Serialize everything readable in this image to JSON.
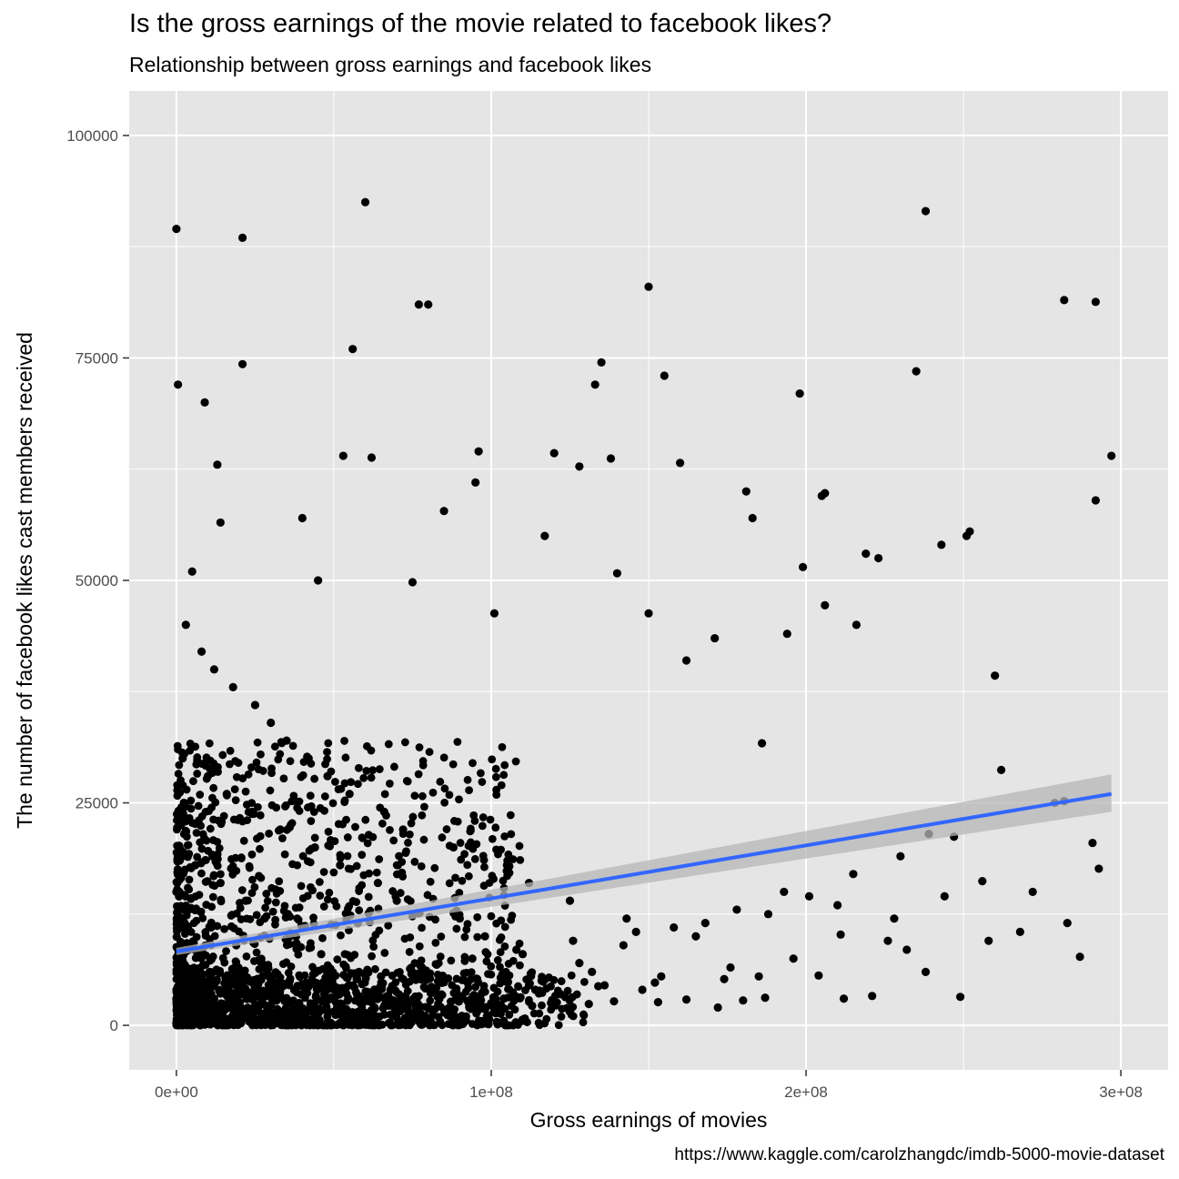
{
  "chart_data": {
    "type": "scatter",
    "title": "Is the gross earnings of the movie related to facebook likes?",
    "subtitle": "Relationship between gross earnings and facebook likes",
    "caption": "https://www.kaggle.com/carolzhangdc/imdb-5000-movie-dataset",
    "xlabel": "Gross earnings of movies",
    "ylabel": "The number of facebook likes cast members received",
    "xlim": [
      -15000000,
      315000000
    ],
    "ylim": [
      -5000,
      105000
    ],
    "x_ticks": [
      0,
      100000000,
      200000000,
      300000000
    ],
    "x_tick_labels": [
      "0e+00",
      "1e+08",
      "2e+08",
      "3e+08"
    ],
    "y_ticks": [
      0,
      25000,
      50000,
      75000,
      100000
    ],
    "y_tick_labels": [
      "0",
      "25000",
      "50000",
      "75000",
      "100000"
    ],
    "grid": true,
    "background": "#e5e5e5",
    "point_color": "#000000",
    "trend_color": "#3366ff",
    "band_color": "#b5b5b5",
    "trend": {
      "method": "linear",
      "x": [
        0,
        297000000
      ],
      "y": [
        8300,
        26000
      ],
      "band_lower": [
        7900,
        24000
      ],
      "band_upper": [
        8700,
        28200
      ]
    },
    "points": {
      "x": [
        0,
        500000,
        21000000,
        60000000,
        238000000,
        150000000,
        80000000,
        77000000,
        282000000,
        292000000,
        56000000,
        135000000,
        21000000,
        133000000,
        235000000,
        155000000,
        198000000,
        9000000,
        297000000,
        13000000,
        96000000,
        53000000,
        62000000,
        120000000,
        138000000,
        128000000,
        160000000,
        95000000,
        292000000,
        181000000,
        205000000,
        206000000,
        14000000,
        183000000,
        223000000,
        252000000,
        85000000,
        40000000,
        117000000,
        251000000,
        199000000,
        206000000,
        219000000,
        216000000,
        140000000,
        5000000,
        45000000,
        75000000,
        101000000,
        150000000,
        171000000,
        260000000,
        262000000,
        186000000,
        162000000,
        194000000,
        243000000,
        279000000,
        282000000,
        287000000,
        291000000,
        293000000,
        272000000,
        256000000,
        228000000,
        239000000,
        185000000,
        201000000,
        211000000,
        226000000,
        247000000,
        3000000,
        8000000,
        12000000,
        18000000,
        25000000,
        30000000,
        35000000,
        42000000,
        48000000,
        55000000,
        66000000,
        72000000,
        88000000,
        105000000,
        112000000,
        125000000,
        143000000,
        165000000,
        2000000,
        10000000,
        16000000,
        24000000,
        33000000,
        44000000,
        52000000,
        64000000,
        70000000,
        90000000,
        98000000,
        110000000,
        132000000,
        148000000,
        172000000,
        1000000,
        6000000,
        14000000,
        22000000,
        28000000,
        38000000,
        46000000,
        58000000,
        68000000,
        80000000,
        92000000,
        104000000,
        116000000,
        128000000,
        142000000,
        158000000,
        178000000,
        193000000,
        215000000,
        230000000,
        0,
        4000000,
        11000000,
        19000000,
        27000000,
        36000000,
        49000000,
        61000000,
        74000000,
        86000000,
        100000000,
        122000000,
        136000000,
        154000000,
        176000000,
        196000000,
        232000000,
        258000000,
        268000000,
        283000000,
        2000000,
        5000000,
        9000000,
        15000000,
        20000000,
        26000000,
        32000000,
        39000000,
        47000000,
        56000000,
        65000000,
        78000000,
        94000000,
        108000000,
        126000000,
        146000000,
        168000000,
        188000000,
        210000000,
        244000000,
        1000000,
        3000000,
        7000000,
        12000000,
        17000000,
        23000000,
        29000000,
        37000000,
        43000000,
        51000000,
        59000000,
        69000000,
        83000000,
        97000000,
        114000000,
        134000000,
        152000000,
        174000000,
        204000000,
        238000000,
        0,
        2000000,
        6000000,
        10000000,
        14000000,
        19000000,
        25000000,
        31000000,
        38000000,
        45000000,
        53000000,
        62000000,
        73000000,
        87000000,
        103000000,
        119000000,
        139000000,
        162000000,
        187000000,
        221000000,
        1000000,
        4000000,
        8000000,
        13000000,
        18000000,
        24000000,
        30000000,
        36000000,
        44000000,
        52000000,
        60000000,
        71000000,
        82000000,
        96000000,
        113000000,
        131000000,
        153000000,
        180000000,
        212000000,
        249000000,
        0,
        1000000,
        3000000,
        5000000,
        7000000,
        9000000,
        12000000,
        15000000,
        18000000,
        21000000,
        24000000,
        27000000,
        31000000,
        35000000,
        40000000,
        46000000,
        54000000,
        63000000,
        76000000,
        93000000
      ],
      "y": [
        89500,
        72000,
        88500,
        92500,
        91500,
        83000,
        81000,
        81000,
        81500,
        81300,
        76000,
        74500,
        74300,
        72000,
        73500,
        73000,
        71000,
        70000,
        64000,
        63000,
        64500,
        64000,
        63800,
        64300,
        63700,
        62800,
        63200,
        61000,
        59000,
        60000,
        59500,
        59800,
        56500,
        57000,
        52500,
        55500,
        57800,
        57000,
        55000,
        55000,
        51500,
        47200,
        53000,
        45000,
        50800,
        51000,
        50000,
        49800,
        46300,
        46300,
        43500,
        39300,
        28700,
        31700,
        41000,
        44000,
        54000,
        25000,
        25200,
        7700,
        20500,
        17600,
        15000,
        16200,
        12000,
        21500,
        5500,
        14500,
        10200,
        9500,
        21200,
        45000,
        42000,
        40000,
        38000,
        36000,
        34000,
        32000,
        30000,
        28000,
        26000,
        24000,
        22000,
        20000,
        18000,
        16000,
        14000,
        12000,
        10000,
        30000,
        28000,
        26000,
        24000,
        22000,
        20000,
        18000,
        16000,
        14000,
        12000,
        10000,
        8000,
        6000,
        4000,
        2000,
        20000,
        18000,
        16000,
        14000,
        12000,
        10000,
        8000,
        6000,
        4000,
        2000,
        1000,
        3000,
        5000,
        7000,
        9000,
        11000,
        13000,
        15000,
        17000,
        19000,
        15000,
        13000,
        11000,
        9000,
        7000,
        5000,
        3000,
        1000,
        500,
        1500,
        2500,
        3500,
        4500,
        5500,
        6500,
        7500,
        8500,
        9500,
        10500,
        11500,
        5000,
        4000,
        3000,
        2000,
        1000,
        500,
        1500,
        2500,
        3500,
        4500,
        5500,
        6500,
        7500,
        8500,
        9500,
        10500,
        11500,
        12500,
        13500,
        14500,
        6000,
        5000,
        4000,
        3000,
        2000,
        1000,
        800,
        1200,
        1600,
        2000,
        2400,
        2800,
        3200,
        3600,
        4000,
        4400,
        4800,
        5200,
        5600,
        6000,
        3000,
        2500,
        2000,
        1500,
        1000,
        500,
        700,
        900,
        1100,
        1300,
        1500,
        1700,
        1900,
        2100,
        2300,
        2500,
        2700,
        2900,
        3100,
        3300,
        1500,
        1300,
        1100,
        900,
        700,
        500,
        600,
        800,
        1000,
        1200,
        1400,
        1600,
        1800,
        2000,
        2200,
        2400,
        2600,
        2800,
        3000,
        3200,
        200,
        300,
        400,
        500,
        600,
        700,
        800,
        900,
        1000,
        1100,
        1200,
        1300,
        1400,
        1500,
        1600,
        1700,
        1800,
        1900,
        2000,
        2100
      ]
    }
  }
}
